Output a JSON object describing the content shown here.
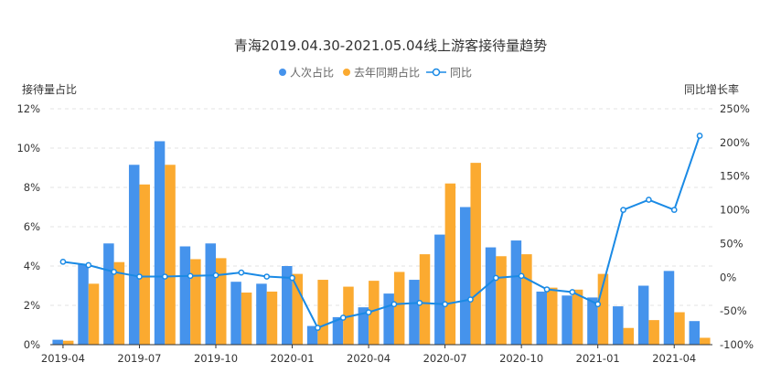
{
  "chart_data": {
    "type": "bar+line",
    "title": "青海2019.04.30-2021.05.04线上游客接待量趋势",
    "y_left_label": "接待量占比",
    "y_right_label": "同比增长率",
    "y_left_range": [
      0,
      12
    ],
    "y_left_ticks": [
      "0%",
      "2%",
      "4%",
      "6%",
      "8%",
      "10%",
      "12%"
    ],
    "y_right_range": [
      -100,
      250
    ],
    "y_right_ticks": [
      "-100%",
      "-50%",
      "0%",
      "50%",
      "100%",
      "150%",
      "200%",
      "250%"
    ],
    "x_tick_labels": [
      "2019-04",
      "2019-07",
      "2019-10",
      "2020-01",
      "2020-04",
      "2020-07",
      "2020-10",
      "2021-01",
      "2021-04"
    ],
    "x_tick_period_index": [
      0,
      3,
      6,
      9,
      12,
      15,
      18,
      21,
      24
    ],
    "periods": 26,
    "grid": "horizontal dashed",
    "legend_position": "top-center",
    "colors": {
      "series1": "#4593EC",
      "series2": "#FBAA30",
      "line": "#1A8AE5"
    },
    "series": [
      {
        "name": "人次占比",
        "kind": "bar",
        "axis": "left",
        "values": [
          0.25,
          4.1,
          5.15,
          9.15,
          10.35,
          5.0,
          5.15,
          3.2,
          3.1,
          4.0,
          0.95,
          1.4,
          1.9,
          2.6,
          3.3,
          5.6,
          7.0,
          4.95,
          5.3,
          2.7,
          2.5,
          2.4,
          1.95,
          3.0,
          3.75,
          1.2
        ]
      },
      {
        "name": "去年同期占比",
        "kind": "bar",
        "axis": "left",
        "values": [
          0.2,
          3.1,
          4.2,
          8.15,
          9.15,
          4.35,
          4.4,
          2.65,
          2.7,
          3.6,
          3.3,
          2.95,
          3.25,
          3.7,
          4.6,
          8.2,
          9.25,
          4.5,
          4.6,
          2.9,
          2.8,
          3.6,
          0.85,
          1.25,
          1.65,
          0.35
        ]
      },
      {
        "name": "同比",
        "kind": "line",
        "axis": "right",
        "values": [
          23,
          18,
          8,
          1,
          1,
          2,
          3,
          7,
          1,
          -1,
          -75,
          -60,
          -52,
          -40,
          -38,
          -40,
          -33,
          -1,
          2,
          -18,
          -22,
          -40,
          100,
          115,
          100,
          210
        ]
      }
    ]
  }
}
